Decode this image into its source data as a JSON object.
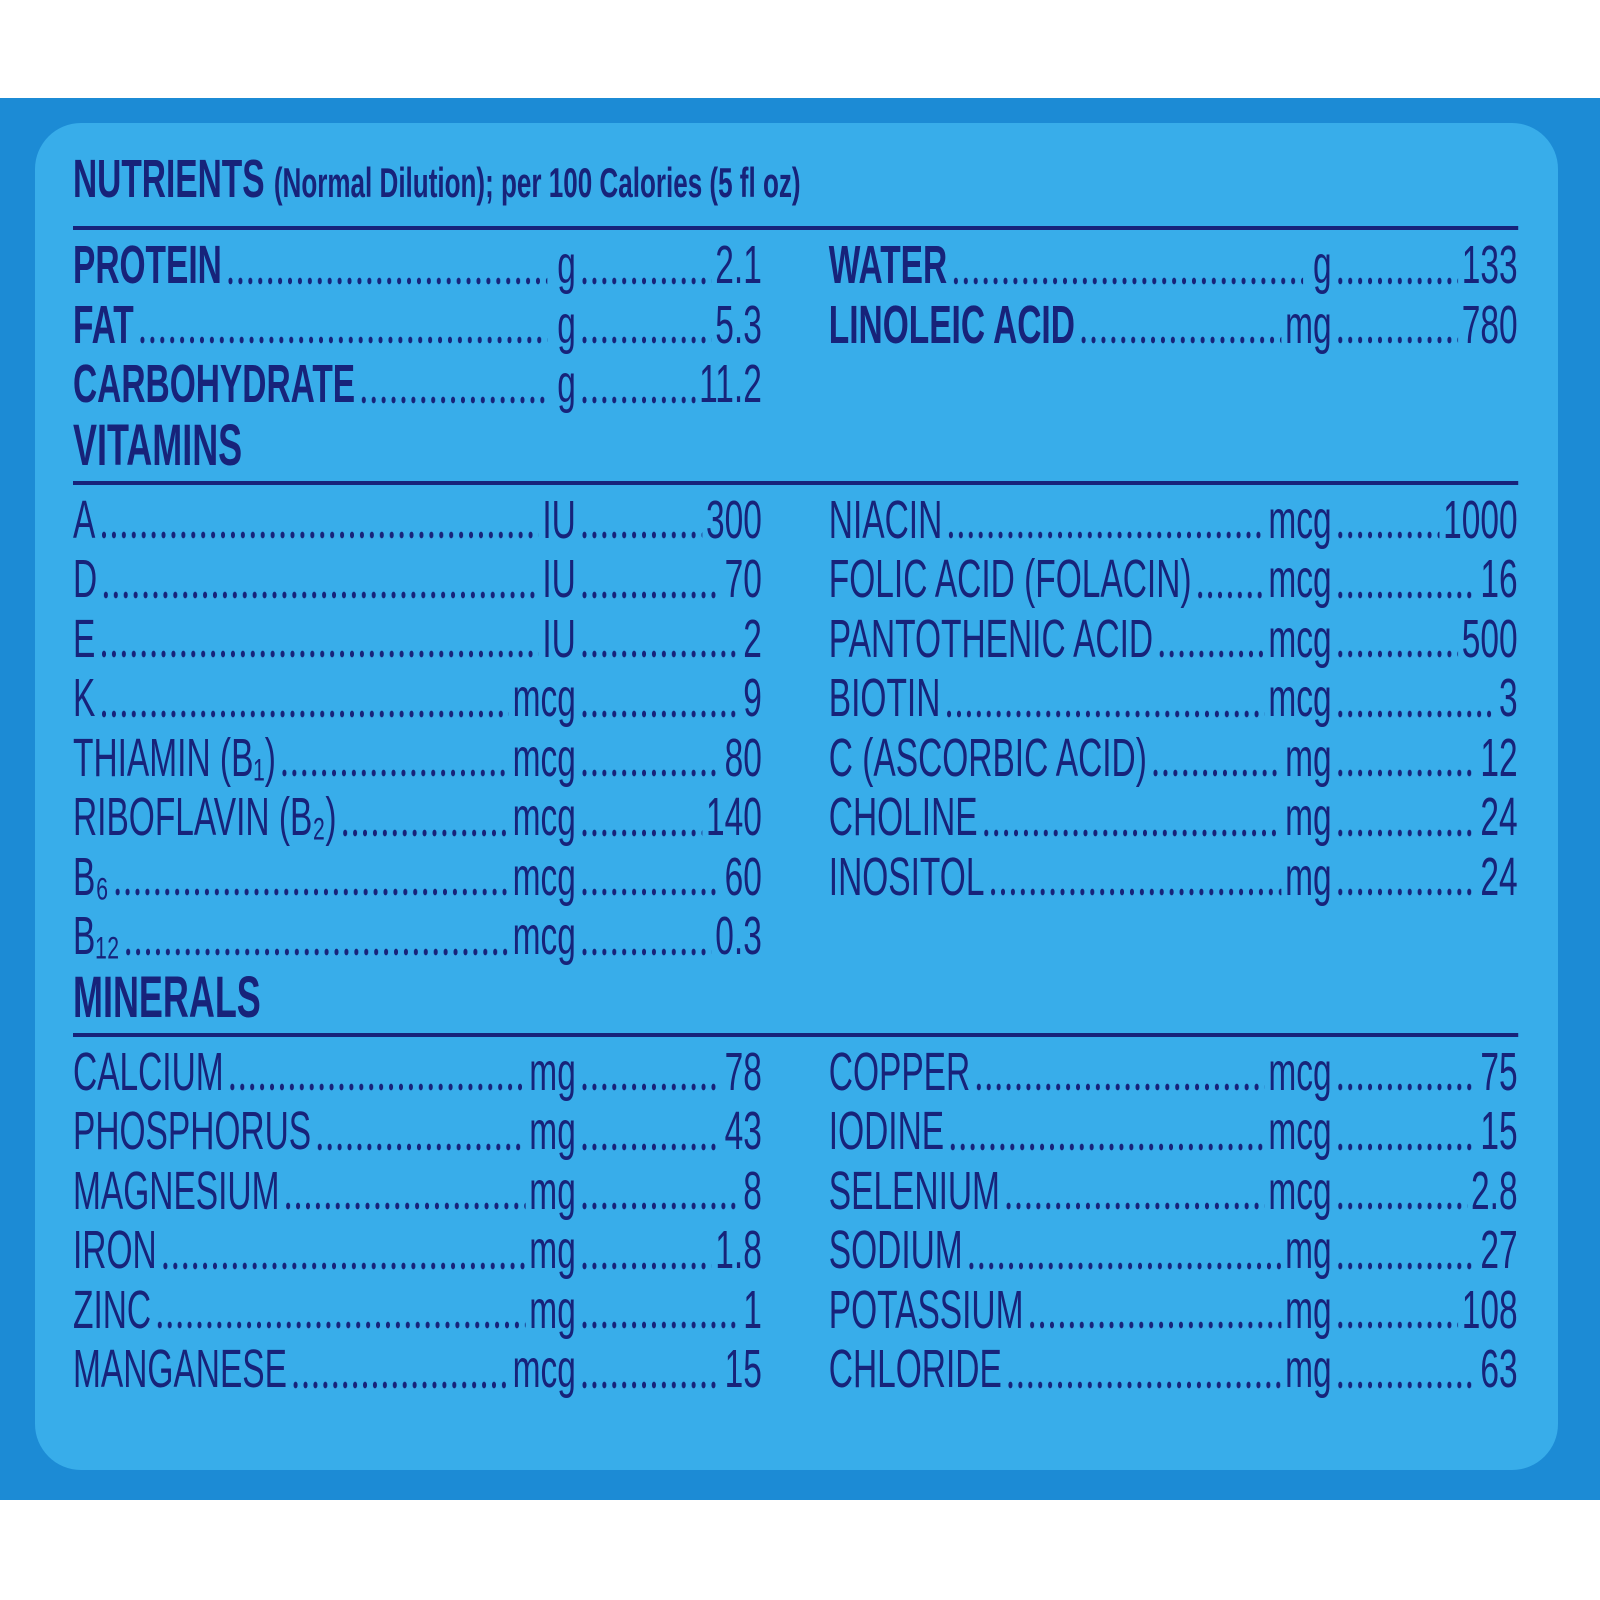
{
  "title": {
    "main": "NUTRIENTS",
    "sub": "(Normal Dilution); per 100 Calories (5 fl oz)"
  },
  "nutrients": {
    "left": [
      {
        "name": "PROTEIN",
        "unit": "g",
        "value": "2.1"
      },
      {
        "name": "FAT",
        "unit": "g",
        "value": "5.3"
      },
      {
        "name": "CARBOHYDRATE",
        "unit": "g",
        "value": "11.2"
      }
    ],
    "right": [
      {
        "name": "WATER",
        "unit": "g",
        "value": "133"
      },
      {
        "name": "LINOLEIC ACID",
        "unit": "mg",
        "value": "780"
      }
    ]
  },
  "vitamins": {
    "heading": "VITAMINS",
    "left": [
      {
        "name": "A",
        "unit": "IU",
        "value": "300"
      },
      {
        "name": "D",
        "unit": "IU",
        "value": "70"
      },
      {
        "name": "E",
        "unit": "IU",
        "value": "2"
      },
      {
        "name": "K",
        "unit": "mcg",
        "value": "9"
      },
      {
        "name": "THIAMIN (B₁)",
        "unit": "mcg",
        "value": "80"
      },
      {
        "name": "RIBOFLAVIN (B₂)",
        "unit": "mcg",
        "value": "140"
      },
      {
        "name": "B₆",
        "unit": "mcg",
        "value": "60"
      },
      {
        "name": "B₁₂",
        "unit": "mcg",
        "value": "0.3"
      }
    ],
    "right": [
      {
        "name": "NIACIN",
        "unit": "mcg",
        "value": "1000"
      },
      {
        "name": "FOLIC ACID (FOLACIN)",
        "unit": "mcg",
        "value": "16"
      },
      {
        "name": "PANTOTHENIC ACID",
        "unit": "mcg",
        "value": "500"
      },
      {
        "name": "BIOTIN",
        "unit": "mcg",
        "value": "3"
      },
      {
        "name": "C (ASCORBIC ACID)",
        "unit": "mg",
        "value": "12"
      },
      {
        "name": "CHOLINE",
        "unit": "mg",
        "value": "24"
      },
      {
        "name": "INOSITOL",
        "unit": "mg",
        "value": "24"
      }
    ]
  },
  "minerals": {
    "heading": "MINERALS",
    "left": [
      {
        "name": "CALCIUM",
        "unit": "mg",
        "value": "78"
      },
      {
        "name": "PHOSPHORUS",
        "unit": "mg",
        "value": "43"
      },
      {
        "name": "MAGNESIUM",
        "unit": "mg",
        "value": "8"
      },
      {
        "name": "IRON",
        "unit": "mg",
        "value": "1.8"
      },
      {
        "name": "ZINC",
        "unit": "mg",
        "value": "1"
      },
      {
        "name": "MANGANESE",
        "unit": "mcg",
        "value": "15"
      }
    ],
    "right": [
      {
        "name": "COPPER",
        "unit": "mcg",
        "value": "75"
      },
      {
        "name": "IODINE",
        "unit": "mcg",
        "value": "15"
      },
      {
        "name": "SELENIUM",
        "unit": "mcg",
        "value": "2.8"
      },
      {
        "name": "SODIUM",
        "unit": "mg",
        "value": "27"
      },
      {
        "name": "POTASSIUM",
        "unit": "mg",
        "value": "108"
      },
      {
        "name": "CHLORIDE",
        "unit": "mg",
        "value": "63"
      }
    ]
  }
}
